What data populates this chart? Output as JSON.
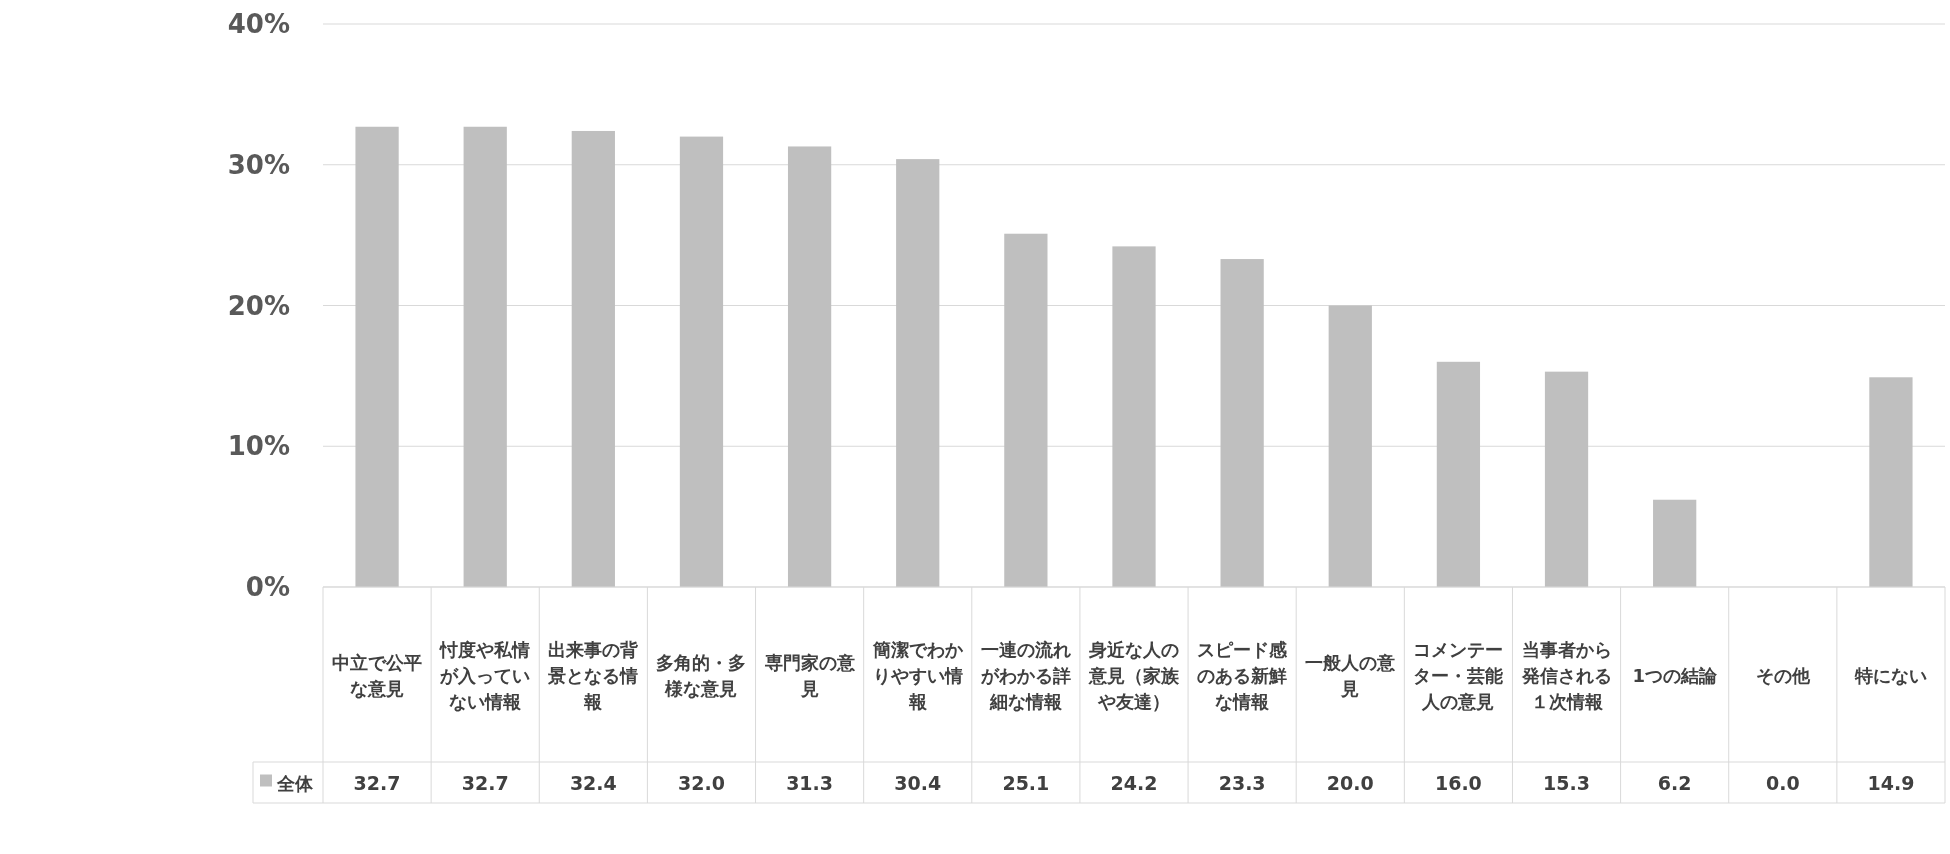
{
  "chart_data": {
    "type": "bar",
    "categories": [
      "中立で公平な意見",
      "忖度や私情が入っていない情報",
      "出来事の背景となる情報",
      "多角的・多様な意見",
      "専門家の意見",
      "簡潔でわかりやすい情報",
      "一連の流れがわかる詳細な情報",
      "身近な人の意見（家族や友達）",
      "スピード感のある新鮮な情報",
      "一般人の意見",
      "コメンテーター・芸能人の意見",
      "当事者から発信される１次情報",
      "1つの結論",
      "その他",
      "特にない"
    ],
    "series": [
      {
        "name": "全体",
        "color": "#bfbfbf",
        "values": [
          32.7,
          32.7,
          32.4,
          32.0,
          31.3,
          30.4,
          25.1,
          24.2,
          23.3,
          20.0,
          16.0,
          15.3,
          6.2,
          0.0,
          14.9
        ]
      }
    ],
    "ylim": [
      0,
      40
    ],
    "yticks": [
      {
        "value": 0,
        "label": "0%"
      },
      {
        "value": 10,
        "label": "10%"
      },
      {
        "value": 20,
        "label": "20%"
      },
      {
        "value": 30,
        "label": "30%"
      },
      {
        "value": 40,
        "label": "40%"
      }
    ],
    "grid": "y",
    "legend": "bottom",
    "value_labels": [
      "32.7",
      "32.7",
      "32.4",
      "32.0",
      "31.3",
      "30.4",
      "25.1",
      "24.2",
      "23.3",
      "20.0",
      "16.0",
      "15.3",
      "6.2",
      "0.0",
      "14.9"
    ]
  }
}
